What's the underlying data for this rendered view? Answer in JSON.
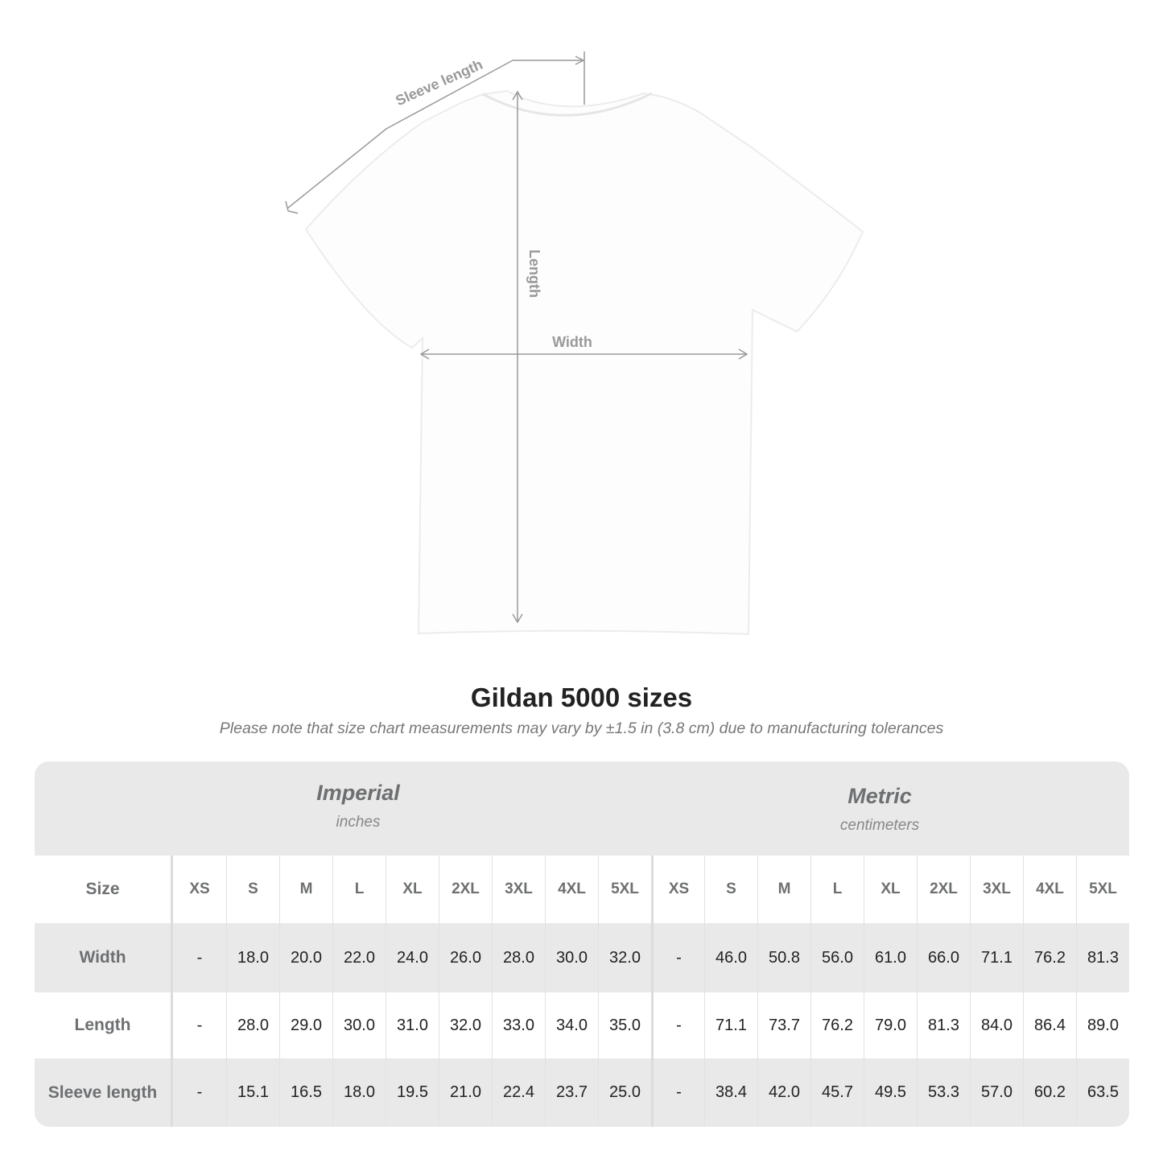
{
  "diagram": {
    "sleeve_label": "Sleeve length",
    "length_label": "Length",
    "width_label": "Width"
  },
  "title": "Gildan 5000 sizes",
  "subtitle": "Please note that size chart measurements may vary by ±1.5 in (3.8 cm) due to manufacturing tolerances",
  "imperial": {
    "heading": "Imperial",
    "unit": "inches"
  },
  "metric": {
    "heading": "Metric",
    "unit": "centimeters"
  },
  "table": {
    "size_label": "Size",
    "sizes": [
      "XS",
      "S",
      "M",
      "L",
      "XL",
      "2XL",
      "3XL",
      "4XL",
      "5XL"
    ],
    "rows": [
      {
        "label": "Width",
        "imperial": [
          "-",
          "18.0",
          "20.0",
          "22.0",
          "24.0",
          "26.0",
          "28.0",
          "30.0",
          "32.0"
        ],
        "metric": [
          "-",
          "46.0",
          "50.8",
          "56.0",
          "61.0",
          "66.0",
          "71.1",
          "76.2",
          "81.3"
        ]
      },
      {
        "label": "Length",
        "imperial": [
          "-",
          "28.0",
          "29.0",
          "30.0",
          "31.0",
          "32.0",
          "33.0",
          "34.0",
          "35.0"
        ],
        "metric": [
          "-",
          "71.1",
          "73.7",
          "76.2",
          "79.0",
          "81.3",
          "84.0",
          "86.4",
          "89.0"
        ]
      },
      {
        "label": "Sleeve length",
        "imperial": [
          "-",
          "15.1",
          "16.5",
          "18.0",
          "19.5",
          "21.0",
          "22.4",
          "23.7",
          "25.0"
        ],
        "metric": [
          "-",
          "38.4",
          "42.0",
          "45.7",
          "49.5",
          "53.3",
          "57.0",
          "60.2",
          "63.5"
        ]
      }
    ]
  },
  "colors": {
    "band": "#e9e9e9",
    "label": "#6d6f71",
    "arrow": "#999999"
  }
}
